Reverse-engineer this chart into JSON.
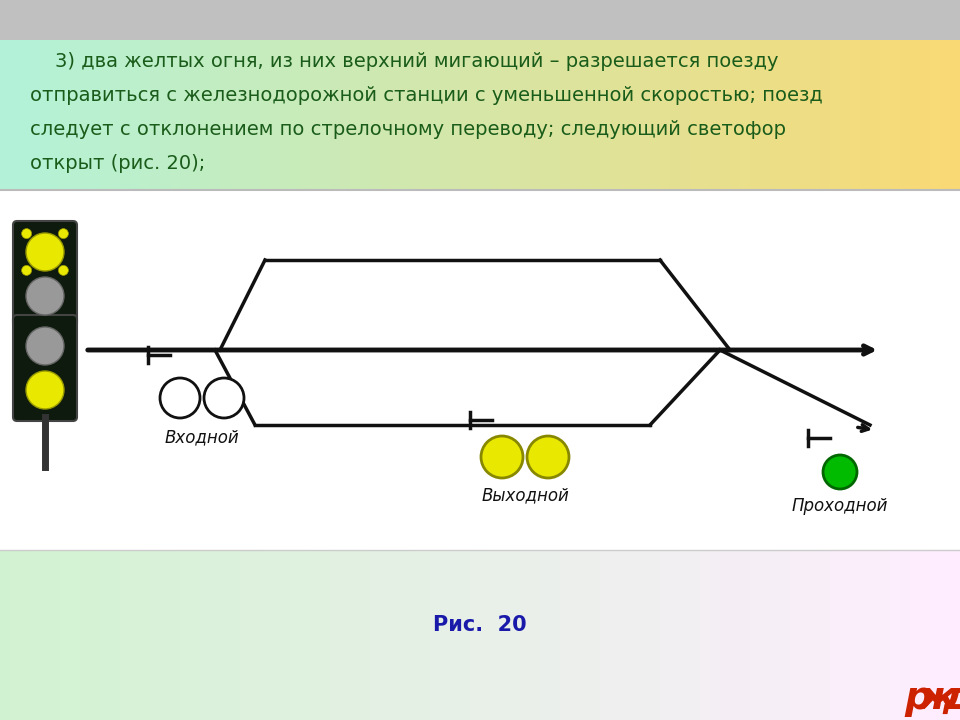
{
  "title_lines": [
    "    3) два желтых огня, из них верхний мигающий – разрешается поезду",
    "отправиться с железнодорожной станции с уменьшенной скоростью; поезд",
    "следует с отклонением по стрелочному переводу; следующий светофор",
    "открыт (рис. 20);"
  ],
  "caption_text": "Рис.  20",
  "caption_color": "#1a1aaa",
  "text_color": "#1a5c1a",
  "signal_входной_label": "Входной",
  "signal_выходной_label": "Выходной",
  "signal_проходной_label": "Проходной",
  "yellow_color": "#e8e800",
  "gray_color": "#999999",
  "dark_color": "#111111",
  "green_color": "#00bb00",
  "white_color": "#ffffff",
  "black_color": "#000000",
  "rzd_color": "#cc2200"
}
